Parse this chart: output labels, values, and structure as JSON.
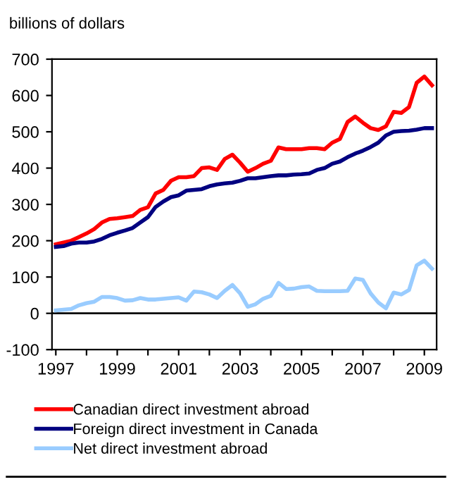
{
  "chart_data": {
    "type": "line",
    "ylabel": "billions of dollars",
    "x": [
      1997.0,
      1997.25,
      1997.5,
      1997.75,
      1998.0,
      1998.25,
      1998.5,
      1998.75,
      1999.0,
      1999.25,
      1999.5,
      1999.75,
      2000.0,
      2000.25,
      2000.5,
      2000.75,
      2001.0,
      2001.25,
      2001.5,
      2001.75,
      2002.0,
      2002.25,
      2002.5,
      2002.75,
      2003.0,
      2003.25,
      2003.5,
      2003.75,
      2004.0,
      2004.25,
      2004.5,
      2004.75,
      2005.0,
      2005.25,
      2005.5,
      2005.75,
      2006.0,
      2006.25,
      2006.5,
      2006.75,
      2007.0,
      2007.25,
      2007.5,
      2007.75,
      2008.0,
      2008.25,
      2008.5,
      2008.75,
      2009.0,
      2009.25
    ],
    "series": [
      {
        "name": "Canadian direct investment abroad",
        "color": "#ff0000",
        "values": [
          190,
          195,
          200,
          210,
          220,
          232,
          250,
          260,
          262,
          265,
          268,
          285,
          292,
          330,
          340,
          365,
          375,
          375,
          378,
          400,
          402,
          395,
          425,
          437,
          415,
          390,
          400,
          412,
          420,
          457,
          452,
          452,
          452,
          455,
          455,
          452,
          470,
          480,
          527,
          542,
          525,
          510,
          505,
          515,
          555,
          552,
          568,
          635,
          652,
          628
        ]
      },
      {
        "name": "Foreign direct investment in Canada",
        "color": "#000080",
        "values": [
          183,
          185,
          192,
          195,
          195,
          198,
          205,
          215,
          222,
          228,
          235,
          250,
          265,
          293,
          308,
          320,
          325,
          338,
          340,
          342,
          350,
          355,
          358,
          360,
          365,
          372,
          372,
          375,
          378,
          380,
          380,
          382,
          383,
          385,
          395,
          400,
          412,
          418,
          430,
          440,
          448,
          458,
          470,
          490,
          500,
          502,
          503,
          506,
          510,
          510
        ]
      },
      {
        "name": "Net direct investment abroad",
        "color": "#99ccff",
        "values": [
          8,
          10,
          12,
          22,
          28,
          32,
          45,
          45,
          42,
          35,
          36,
          42,
          38,
          38,
          40,
          42,
          44,
          35,
          60,
          58,
          52,
          42,
          62,
          78,
          55,
          18,
          25,
          40,
          48,
          84,
          67,
          68,
          72,
          74,
          62,
          61,
          61,
          61,
          62,
          96,
          92,
          55,
          30,
          14,
          57,
          52,
          64,
          132,
          145,
          123
        ]
      }
    ],
    "xlim": [
      1996.875,
      2009.4
    ],
    "xticks": [
      1997,
      {
        "value": 1998,
        "label": null
      },
      1999,
      {
        "value": 2000,
        "label": null
      },
      2001,
      {
        "value": 2002,
        "label": null
      },
      2003,
      {
        "value": 2004,
        "label": null
      },
      2005,
      {
        "value": 2006,
        "label": null
      },
      2007,
      {
        "value": 2008,
        "label": null
      },
      2009
    ],
    "ylim": [
      -100,
      700
    ],
    "yticks": [
      -100,
      0,
      100,
      200,
      300,
      400,
      500,
      600,
      700
    ],
    "ref_lines": [
      {
        "axis": "y",
        "value": 0,
        "color": "#000000"
      }
    ],
    "grid": false,
    "legend": "bottom"
  }
}
